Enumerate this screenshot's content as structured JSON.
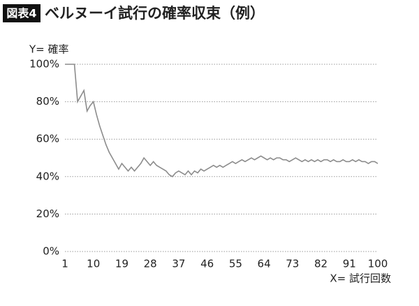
{
  "chart_data": {
    "type": "line",
    "badge": "図表4",
    "title": "ベルヌーイ試行の確率収束（例）",
    "ylabel": "Y= 確率",
    "xlabel": "X= 試行回数",
    "x": [
      1,
      2,
      3,
      4,
      5,
      6,
      7,
      8,
      9,
      10,
      11,
      12,
      13,
      14,
      15,
      16,
      17,
      18,
      19,
      20,
      21,
      22,
      23,
      24,
      25,
      26,
      27,
      28,
      29,
      30,
      31,
      32,
      33,
      34,
      35,
      36,
      37,
      38,
      39,
      40,
      41,
      42,
      43,
      44,
      45,
      46,
      47,
      48,
      49,
      50,
      51,
      52,
      53,
      54,
      55,
      56,
      57,
      58,
      59,
      60,
      61,
      62,
      63,
      64,
      65,
      66,
      67,
      68,
      69,
      70,
      71,
      72,
      73,
      74,
      75,
      76,
      77,
      78,
      79,
      80,
      81,
      82,
      83,
      84,
      85,
      86,
      87,
      88,
      89,
      90,
      91,
      92,
      93,
      94,
      95,
      96,
      97,
      98,
      99,
      100
    ],
    "series": [
      {
        "name": "確率",
        "color": "#8c8c8c",
        "values": [
          100,
          100,
          100,
          100,
          80,
          83,
          86,
          75,
          78,
          80,
          73,
          67,
          62,
          57,
          53,
          50,
          47,
          44,
          47,
          45,
          43,
          45,
          43,
          45,
          47,
          50,
          48,
          46,
          48,
          46,
          45,
          44,
          43,
          41,
          40,
          42,
          43,
          42,
          41,
          43,
          41,
          43,
          42,
          44,
          43,
          44,
          45,
          46,
          45,
          46,
          45,
          46,
          47,
          48,
          47,
          48,
          49,
          48,
          49,
          50,
          49,
          50,
          51,
          50,
          49,
          50,
          49,
          50,
          50,
          49,
          49,
          48,
          49,
          50,
          49,
          48,
          49,
          48,
          49,
          48,
          49,
          48,
          49,
          49,
          48,
          49,
          48,
          48,
          49,
          48,
          48,
          49,
          48,
          49,
          48,
          48,
          47,
          48,
          48,
          47
        ]
      }
    ],
    "xlim": [
      1,
      100
    ],
    "xticks": [
      1,
      10,
      19,
      28,
      37,
      46,
      55,
      64,
      73,
      82,
      91,
      100
    ],
    "ylim": [
      0,
      100
    ],
    "yticks": [
      {
        "value": 0,
        "label": "0%"
      },
      {
        "value": 20,
        "label": "20%"
      },
      {
        "value": 40,
        "label": "40%"
      },
      {
        "value": 60,
        "label": "60%"
      },
      {
        "value": 80,
        "label": "80%"
      },
      {
        "value": 100,
        "label": "100%"
      }
    ],
    "grid": true
  }
}
